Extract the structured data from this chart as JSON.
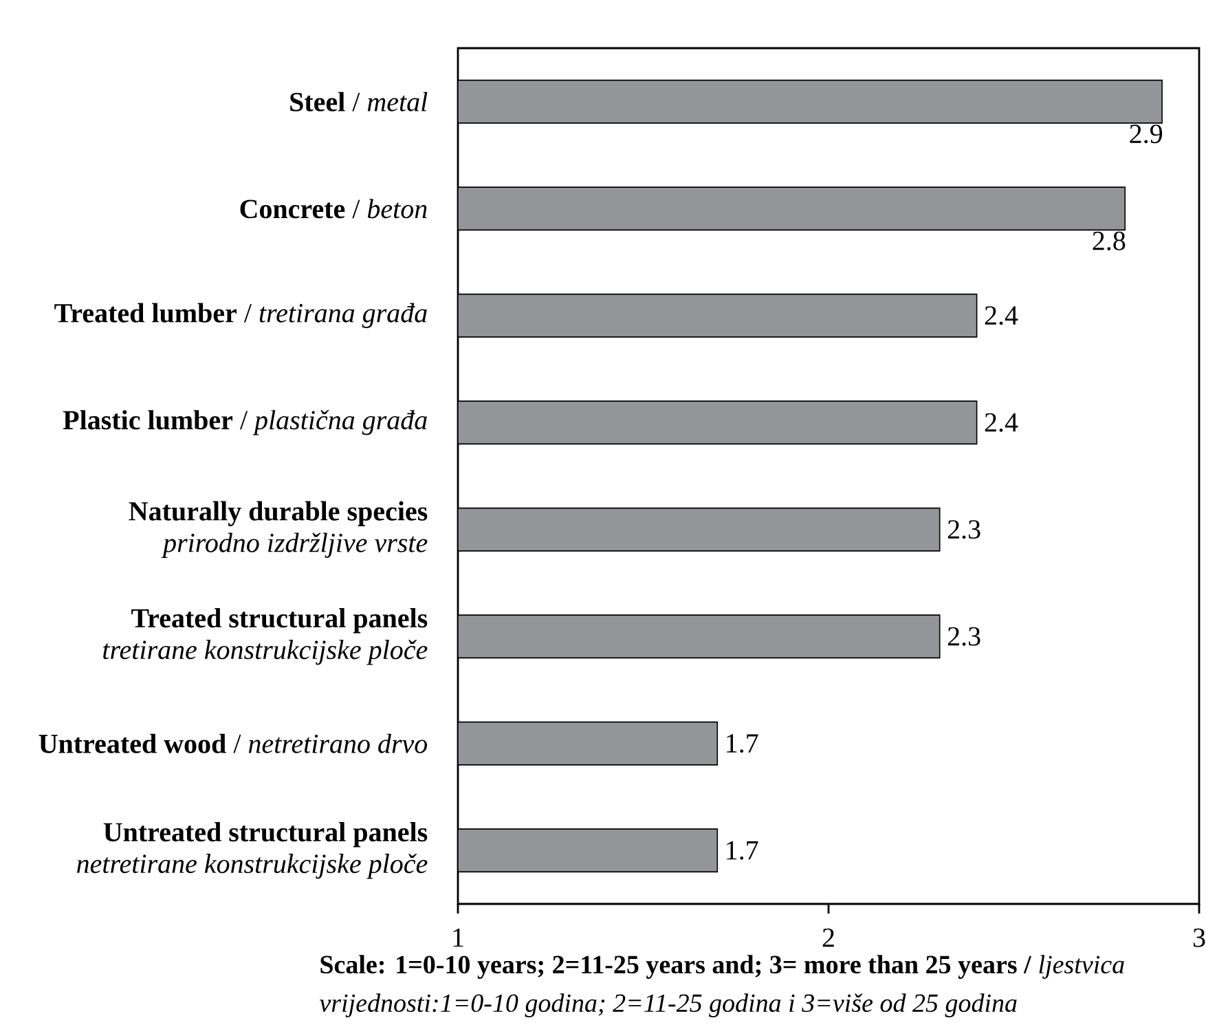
{
  "chart_data": {
    "type": "bar",
    "orientation": "horizontal",
    "categories": [
      "**Steel** / *metal*",
      "**Concrete** / *beton*",
      "**Treated lumber** / *tretirana građa*",
      "**Plastic lumber** / *plastična građa*",
      "**Naturally durable species** *prirodno izdržljive vrste*",
      "**Treated structural panels** *tretirane konstrukcijske ploče*",
      "**Untreated wood** / *netretirano drvo*",
      "**Untreated structural panels** *netretirane konstrukcijske ploče*"
    ],
    "values": [
      2.9,
      2.8,
      2.4,
      2.4,
      2.3,
      2.3,
      1.7,
      1.7
    ],
    "color": "#939598",
    "xlim": [
      1,
      3
    ],
    "xticks": [
      1,
      2,
      3
    ],
    "data_labels": true,
    "annotations": [
      "**Scale: 1=0-10 years; 2=11-25 years and; 3= more than 25 years /** *ljestvica vrijednosti:1=0-10 godina; 2=11-25 godina i 3=više od 25 godina*"
    ]
  }
}
